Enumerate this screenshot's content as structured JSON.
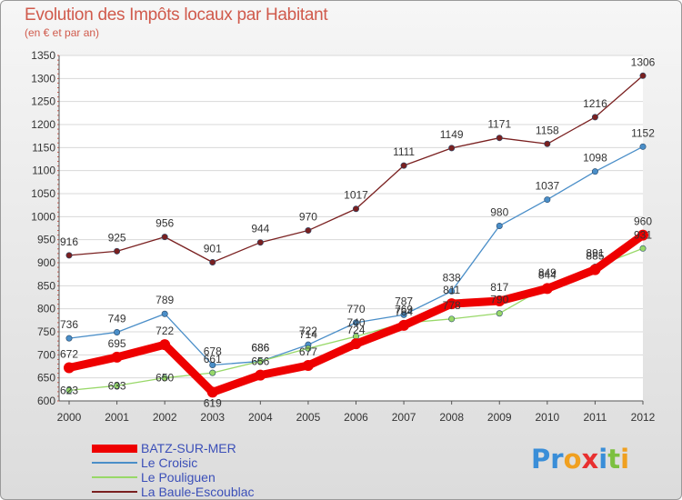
{
  "header": {
    "title": "Evolution des Impôts locaux par Habitant",
    "subtitle": "(en € et par an)"
  },
  "logo": {
    "text": "Proxiti",
    "letters": [
      {
        "ch": "P",
        "color": "#3a8ed8"
      },
      {
        "ch": "r",
        "color": "#3a8ed8"
      },
      {
        "ch": "o",
        "color": "#f0a020"
      },
      {
        "ch": "x",
        "color": "#e83030"
      },
      {
        "ch": "i",
        "color": "#3a8ed8"
      },
      {
        "ch": "t",
        "color": "#7cc040"
      },
      {
        "ch": "i",
        "color": "#f0a020"
      }
    ]
  },
  "chart_data": {
    "type": "line",
    "title": "Evolution des Impôts locaux par Habitant",
    "subtitle": "(en € et par an)",
    "xlabel": "",
    "ylabel": "",
    "x": [
      "2000",
      "2001",
      "2002",
      "2003",
      "2004",
      "2005",
      "2006",
      "2007",
      "2008",
      "2009",
      "2010",
      "2011",
      "2012"
    ],
    "ylim": [
      600,
      1350
    ],
    "yticks": [
      600,
      650,
      700,
      750,
      800,
      850,
      900,
      950,
      1000,
      1050,
      1100,
      1150,
      1200,
      1250,
      1300,
      1350
    ],
    "grid": "horizontal",
    "legend": "bottom-left",
    "series": [
      {
        "name": "La Baule-Escoublac",
        "color": "#7a2020",
        "values": [
          916,
          925,
          956,
          901,
          944,
          970,
          1017,
          1111,
          1149,
          1171,
          1158,
          1216,
          1306
        ]
      },
      {
        "name": "Le Croisic",
        "color": "#4a8ec8",
        "values": [
          736,
          749,
          789,
          678,
          686,
          722,
          770,
          787,
          838,
          980,
          1037,
          1098,
          1152
        ]
      },
      {
        "name": "Le Pouliguen",
        "color": "#98d868",
        "values": [
          623,
          633,
          650,
          661,
          686,
          714,
          740,
          769,
          778,
          790,
          849,
          891,
          931
        ]
      },
      {
        "name": "BATZ-SUR-MER",
        "color": "#ee0000",
        "values": [
          672,
          695,
          722,
          619,
          656,
          677,
          724,
          764,
          811,
          817,
          844,
          885,
          960
        ]
      }
    ],
    "legend_order": [
      "BATZ-SUR-MER",
      "Le Croisic",
      "Le Pouliguen",
      "La Baule-Escoublac"
    ]
  }
}
